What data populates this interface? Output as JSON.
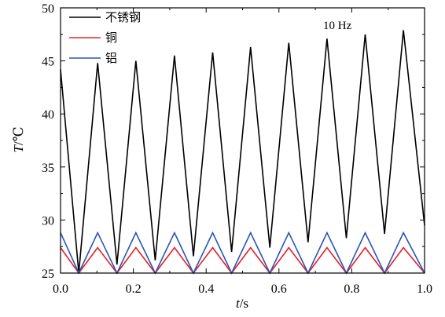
{
  "chart_data": {
    "type": "line",
    "title": "",
    "xlabel_var": "t",
    "xlabel_unit": "/s",
    "ylabel_var": "T",
    "ylabel_unit": "/℃",
    "xlim": [
      0.0,
      1.0
    ],
    "ylim": [
      25,
      50
    ],
    "x_ticks": [
      0.0,
      0.2,
      0.4,
      0.6,
      0.8,
      1.0
    ],
    "x_tick_labels": [
      "0.0",
      "0.2",
      "0.4",
      "0.6",
      "0.8",
      "1.0"
    ],
    "y_ticks": [
      25,
      30,
      35,
      40,
      45,
      50
    ],
    "y_tick_labels": [
      "25",
      "30",
      "35",
      "40",
      "45",
      "50"
    ],
    "annotation": "10 Hz",
    "legend_position": "top-left",
    "grid": false,
    "series": [
      {
        "name": "不锈钢",
        "color": "#000000",
        "x": [
          0.0,
          0.05,
          0.102,
          0.155,
          0.207,
          0.26,
          0.313,
          0.365,
          0.418,
          0.47,
          0.522,
          0.575,
          0.627,
          0.68,
          0.732,
          0.785,
          0.837,
          0.89,
          0.942,
          1.0
        ],
        "y": [
          44.2,
          25.0,
          44.8,
          25.8,
          45.0,
          26.2,
          45.5,
          26.6,
          45.8,
          27.0,
          46.3,
          27.4,
          46.7,
          27.9,
          47.1,
          28.3,
          47.5,
          28.7,
          47.9,
          29.5
        ]
      },
      {
        "name": "铜",
        "color": "#e8202a",
        "x": [
          0.0,
          0.05,
          0.102,
          0.155,
          0.207,
          0.26,
          0.313,
          0.365,
          0.418,
          0.47,
          0.522,
          0.575,
          0.627,
          0.68,
          0.732,
          0.785,
          0.837,
          0.89,
          0.942,
          1.0
        ],
        "y": [
          27.4,
          25.0,
          27.4,
          25.0,
          27.4,
          25.0,
          27.4,
          25.0,
          27.4,
          25.0,
          27.4,
          25.0,
          27.4,
          25.0,
          27.4,
          25.0,
          27.4,
          25.0,
          27.4,
          25.0
        ]
      },
      {
        "name": "铝",
        "color": "#2a56b4",
        "x": [
          0.0,
          0.05,
          0.102,
          0.155,
          0.207,
          0.26,
          0.313,
          0.365,
          0.418,
          0.47,
          0.522,
          0.575,
          0.627,
          0.68,
          0.732,
          0.785,
          0.837,
          0.89,
          0.942,
          1.0
        ],
        "y": [
          28.8,
          25.0,
          28.8,
          25.0,
          28.8,
          25.0,
          28.8,
          25.0,
          28.8,
          25.0,
          28.8,
          25.0,
          28.8,
          25.0,
          28.8,
          25.0,
          28.8,
          25.0,
          28.8,
          25.0
        ]
      }
    ]
  }
}
